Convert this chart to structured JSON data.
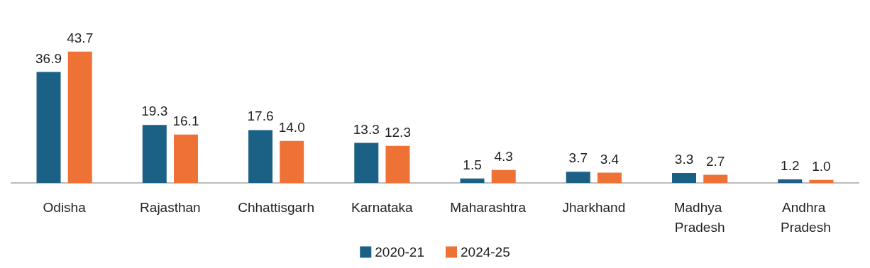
{
  "chart_data": {
    "type": "bar",
    "categories": [
      "Odisha",
      "Rajasthan",
      "Chhattisgarh",
      "Karnataka",
      "Maharashtra",
      "Jharkhand",
      "Madhya Pradesh",
      "Andhra Pradesh"
    ],
    "series": [
      {
        "name": "2020-21",
        "color": "#1b6185",
        "values": [
          36.9,
          19.3,
          17.6,
          13.3,
          1.5,
          3.7,
          3.3,
          1.2
        ],
        "value_labels": [
          "36.9",
          "19.3",
          "17.6",
          "13.3",
          "1.5",
          "3.7",
          "3.3",
          "1.2"
        ]
      },
      {
        "name": "2024-25",
        "color": "#ee7236",
        "values": [
          43.7,
          16.1,
          14.0,
          12.3,
          4.3,
          3.4,
          2.7,
          1.0
        ],
        "value_labels": [
          "43.7",
          "16.1",
          "14.0",
          "12.3",
          "4.3",
          "3.4",
          "2.7",
          "1.0"
        ]
      }
    ],
    "legend": "bottom"
  }
}
